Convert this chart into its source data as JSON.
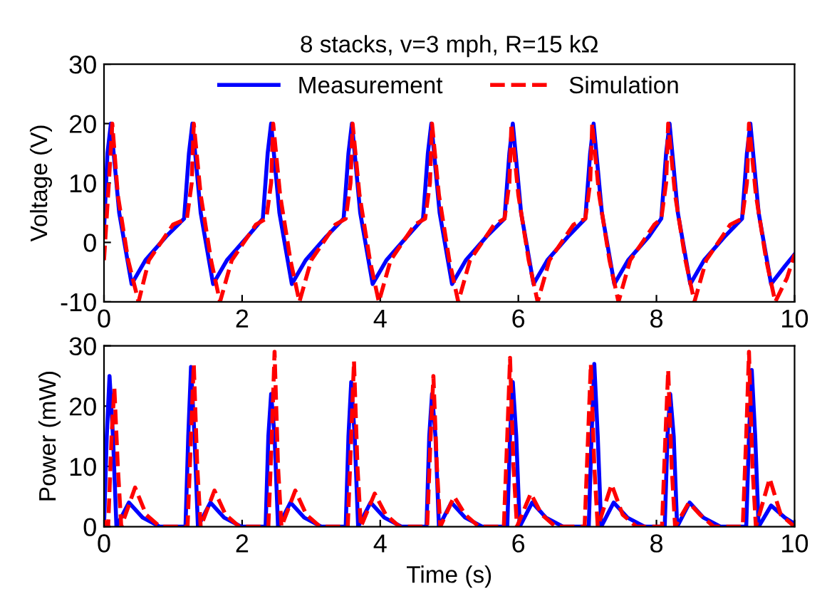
{
  "chart_data": [
    {
      "type": "line",
      "title": "8 stacks, v=3 mph, R=15 kΩ",
      "ylabel": "Voltage (V)",
      "xlim": [
        0,
        10
      ],
      "xticks": [
        0,
        2,
        4,
        6,
        8,
        10
      ],
      "ylim": [
        -10,
        30
      ],
      "yticks": [
        -10,
        0,
        10,
        20,
        30
      ],
      "legend": "top",
      "grid": false,
      "series": [
        {
          "name": "Measurement",
          "color": "#0000ff",
          "line_style": "solid",
          "x": [
            0,
            0.05,
            0.1,
            0.22,
            0.4,
            0.6,
            0.9,
            1.16,
            1.23,
            1.28,
            1.4,
            1.58,
            1.78,
            2.08,
            2.3,
            2.37,
            2.42,
            2.54,
            2.72,
            2.92,
            3.22,
            3.47,
            3.54,
            3.59,
            3.71,
            3.89,
            4.09,
            4.39,
            4.62,
            4.69,
            4.74,
            4.86,
            5.04,
            5.24,
            5.54,
            5.8,
            5.87,
            5.92,
            6.04,
            6.22,
            6.42,
            6.72,
            6.97,
            7.04,
            7.09,
            7.21,
            7.39,
            7.59,
            7.89,
            8.07,
            8.14,
            8.19,
            8.31,
            8.49,
            8.69,
            8.99,
            9.24,
            9.31,
            9.36,
            9.48,
            9.66,
            9.86,
            10
          ],
          "values": [
            2,
            15,
            20,
            5,
            -7,
            -3,
            1,
            4,
            15,
            20,
            5,
            -7,
            -3,
            1,
            4,
            15,
            20,
            5,
            -7,
            -3,
            1,
            4,
            15,
            20,
            5,
            -7,
            -3,
            1,
            4,
            15,
            20,
            5,
            -7,
            -3,
            1,
            4,
            15,
            20,
            5,
            -7,
            -3,
            1,
            4,
            15,
            20,
            5,
            -7,
            -3,
            1,
            4,
            15,
            20,
            5,
            -7,
            -3,
            1,
            4,
            15,
            20,
            5,
            -7,
            -4,
            -2
          ]
        },
        {
          "name": "Simulation",
          "color": "#ff0000",
          "line_style": "dashed",
          "x": [
            0,
            0.07,
            0.12,
            0.2,
            0.35,
            0.5,
            0.65,
            1.0,
            1.2,
            1.27,
            1.3,
            1.4,
            1.55,
            1.68,
            1.85,
            2.2,
            2.35,
            2.42,
            2.45,
            2.55,
            2.7,
            2.83,
            3.0,
            3.35,
            3.5,
            3.57,
            3.6,
            3.7,
            3.85,
            3.98,
            4.15,
            4.5,
            4.65,
            4.72,
            4.75,
            4.85,
            5.0,
            5.13,
            5.3,
            5.65,
            5.8,
            5.87,
            5.9,
            6.0,
            6.15,
            6.28,
            6.45,
            6.8,
            6.97,
            7.04,
            7.07,
            7.17,
            7.32,
            7.45,
            7.62,
            7.97,
            8.07,
            8.14,
            8.17,
            8.27,
            8.42,
            8.55,
            8.72,
            9.07,
            9.24,
            9.31,
            9.34,
            9.44,
            9.59,
            9.72,
            9.89,
            10
          ],
          "values": [
            -3,
            10,
            20,
            8,
            -3,
            -10,
            -3,
            3,
            4,
            10,
            20,
            8,
            -3,
            -10,
            -3,
            3,
            4,
            10,
            20,
            8,
            -3,
            -10,
            -3,
            3,
            4,
            10,
            20,
            8,
            -3,
            -10,
            -3,
            3,
            4,
            10,
            20,
            8,
            -3,
            -10,
            -3,
            3,
            4,
            10,
            20,
            8,
            -3,
            -10,
            -3,
            3,
            4,
            10,
            20,
            8,
            -3,
            -10,
            -3,
            3,
            4,
            10,
            20,
            8,
            -3,
            -10,
            -3,
            3,
            4,
            10,
            20,
            8,
            -3,
            -10,
            -6,
            -2
          ]
        }
      ]
    },
    {
      "type": "line",
      "xlabel": "Time (s)",
      "ylabel": "Power (mW)",
      "xlim": [
        0,
        10
      ],
      "xticks": [
        0,
        2,
        4,
        6,
        8,
        10
      ],
      "ylim": [
        0,
        30
      ],
      "yticks": [
        0,
        10,
        20,
        30
      ],
      "grid": false,
      "series": [
        {
          "color": "#0000ff",
          "line_style": "solid",
          "x": [
            0,
            0.04,
            0.08,
            0.13,
            0.18,
            0.36,
            0.56,
            0.81,
            1.18,
            1.22,
            1.26,
            1.31,
            1.36,
            1.54,
            1.74,
            1.99,
            2.34,
            2.38,
            2.42,
            2.47,
            2.52,
            2.7,
            2.9,
            3.15,
            3.5,
            3.54,
            3.58,
            3.63,
            3.68,
            3.86,
            4.06,
            4.31,
            4.67,
            4.71,
            4.75,
            4.8,
            4.85,
            5.03,
            5.23,
            5.48,
            5.84,
            5.88,
            5.92,
            5.97,
            6.02,
            6.2,
            6.4,
            6.65,
            7.02,
            7.06,
            7.1,
            7.15,
            7.2,
            7.38,
            7.58,
            7.83,
            8.12,
            8.16,
            8.2,
            8.25,
            8.3,
            8.48,
            8.68,
            8.93,
            9.3,
            9.34,
            9.38,
            9.43,
            9.48,
            9.66,
            9.86,
            10
          ],
          "values": [
            0,
            15,
            25,
            15,
            0,
            4,
            1.5,
            0,
            0,
            15,
            26.5,
            15,
            0,
            4,
            1.5,
            0,
            0,
            15,
            22,
            15,
            0,
            4,
            1.5,
            0,
            0,
            15,
            24,
            15,
            0,
            4,
            1.5,
            0,
            0,
            15,
            22,
            15,
            0,
            4,
            1.5,
            0,
            0,
            15,
            24,
            15,
            0,
            4,
            1.5,
            0,
            0,
            15,
            27,
            15,
            0,
            4,
            1.5,
            0,
            0,
            15,
            22,
            15,
            0,
            4,
            1.5,
            0,
            0,
            15,
            26,
            15,
            0,
            3.5,
            1.5,
            0.5
          ]
        },
        {
          "color": "#ff0000",
          "line_style": "dashed",
          "x": [
            0,
            0.06,
            0.11,
            0.15,
            0.2,
            0.25,
            0.45,
            0.61,
            0.81,
            1.21,
            1.26,
            1.3,
            1.35,
            1.4,
            1.6,
            1.76,
            1.96,
            2.38,
            2.43,
            2.47,
            2.52,
            2.57,
            2.77,
            2.93,
            3.13,
            3.53,
            3.58,
            3.62,
            3.67,
            3.72,
            3.92,
            4.08,
            4.28,
            4.68,
            4.73,
            4.77,
            4.82,
            4.87,
            5.07,
            5.23,
            5.43,
            5.79,
            5.84,
            5.88,
            5.93,
            5.98,
            6.18,
            6.34,
            6.54,
            6.96,
            7.01,
            7.05,
            7.1,
            7.15,
            7.35,
            7.51,
            7.71,
            8.08,
            8.13,
            8.17,
            8.22,
            8.27,
            8.47,
            8.63,
            8.83,
            9.25,
            9.3,
            9.34,
            9.39,
            9.44,
            9.64,
            9.8,
            10
          ],
          "values": [
            1,
            0,
            15,
            23,
            10,
            0,
            6.5,
            2,
            0,
            0,
            15,
            27,
            10,
            0,
            6,
            2,
            0,
            0,
            15,
            29,
            10,
            0,
            6,
            2,
            0,
            0,
            15,
            27.5,
            10,
            0,
            5.5,
            2,
            0,
            0,
            15,
            25,
            10,
            0,
            5,
            2,
            0,
            0,
            15,
            28,
            10,
            0,
            5.5,
            2,
            0,
            0,
            15,
            27,
            10,
            0,
            7,
            2,
            0,
            0,
            15,
            26,
            10,
            0,
            4,
            2,
            0,
            0,
            15,
            29,
            10,
            0,
            8,
            2,
            0
          ]
        }
      ]
    }
  ]
}
